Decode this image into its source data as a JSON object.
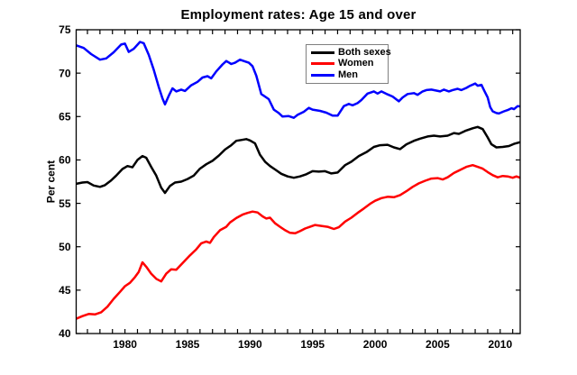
{
  "chart_data": {
    "type": "line",
    "title": "Employment rates: Age 15 and over",
    "xlabel": "",
    "ylabel": "Per cent",
    "xlim": [
      1976.1,
      2011.6
    ],
    "ylim": [
      40,
      75
    ],
    "y_ticks": [
      40,
      45,
      50,
      55,
      60,
      65,
      70,
      75
    ],
    "x_major_ticks": [
      1980,
      1985,
      1990,
      1995,
      2000,
      2005,
      2010
    ],
    "x_tick_labels": [
      "1980",
      "1985",
      "1990",
      "1995",
      "2000",
      "2005",
      "2010"
    ],
    "x_minor_tick_step": 1,
    "grid": false,
    "box": true,
    "legend_position": "upper-center",
    "axis_color": "#000000",
    "background_color": "#ffffff",
    "series": [
      {
        "name": "Both sexes",
        "color": "#000000",
        "points": [
          [
            1976.1,
            57.25
          ],
          [
            1976.6,
            57.4
          ],
          [
            1977.0,
            57.45
          ],
          [
            1977.5,
            57.05
          ],
          [
            1978.0,
            56.9
          ],
          [
            1978.4,
            57.1
          ],
          [
            1978.9,
            57.65
          ],
          [
            1979.3,
            58.2
          ],
          [
            1979.8,
            58.95
          ],
          [
            1980.2,
            59.3
          ],
          [
            1980.6,
            59.15
          ],
          [
            1981.0,
            60.0
          ],
          [
            1981.4,
            60.45
          ],
          [
            1981.7,
            60.25
          ],
          [
            1982.1,
            59.2
          ],
          [
            1982.5,
            58.2
          ],
          [
            1982.9,
            56.8
          ],
          [
            1983.2,
            56.2
          ],
          [
            1983.6,
            57.0
          ],
          [
            1984.0,
            57.4
          ],
          [
            1984.5,
            57.5
          ],
          [
            1985.0,
            57.8
          ],
          [
            1985.5,
            58.2
          ],
          [
            1986.0,
            59.0
          ],
          [
            1986.5,
            59.5
          ],
          [
            1987.0,
            59.9
          ],
          [
            1987.5,
            60.5
          ],
          [
            1988.0,
            61.2
          ],
          [
            1988.5,
            61.7
          ],
          [
            1988.9,
            62.2
          ],
          [
            1989.3,
            62.3
          ],
          [
            1989.7,
            62.4
          ],
          [
            1990.0,
            62.25
          ],
          [
            1990.4,
            61.9
          ],
          [
            1990.8,
            60.6
          ],
          [
            1991.2,
            59.8
          ],
          [
            1991.6,
            59.3
          ],
          [
            1992.0,
            58.9
          ],
          [
            1992.5,
            58.4
          ],
          [
            1993.0,
            58.1
          ],
          [
            1993.5,
            57.95
          ],
          [
            1994.0,
            58.1
          ],
          [
            1994.5,
            58.35
          ],
          [
            1995.0,
            58.7
          ],
          [
            1995.5,
            58.65
          ],
          [
            1996.0,
            58.7
          ],
          [
            1996.5,
            58.45
          ],
          [
            1997.0,
            58.55
          ],
          [
            1997.6,
            59.4
          ],
          [
            1998.1,
            59.8
          ],
          [
            1998.7,
            60.45
          ],
          [
            1999.3,
            60.9
          ],
          [
            1999.9,
            61.5
          ],
          [
            2000.4,
            61.7
          ],
          [
            2001.0,
            61.75
          ],
          [
            2001.5,
            61.45
          ],
          [
            2002.0,
            61.25
          ],
          [
            2002.5,
            61.8
          ],
          [
            2003.1,
            62.2
          ],
          [
            2003.6,
            62.45
          ],
          [
            2004.2,
            62.7
          ],
          [
            2004.7,
            62.8
          ],
          [
            2005.2,
            62.7
          ],
          [
            2005.8,
            62.8
          ],
          [
            2006.3,
            63.1
          ],
          [
            2006.7,
            63.0
          ],
          [
            2007.2,
            63.35
          ],
          [
            2007.8,
            63.65
          ],
          [
            2008.2,
            63.8
          ],
          [
            2008.6,
            63.55
          ],
          [
            2009.0,
            62.6
          ],
          [
            2009.3,
            61.8
          ],
          [
            2009.7,
            61.45
          ],
          [
            2010.2,
            61.5
          ],
          [
            2010.7,
            61.6
          ],
          [
            2011.1,
            61.85
          ],
          [
            2011.6,
            62.05
          ]
        ]
      },
      {
        "name": "Women",
        "color": "#ff0000",
        "points": [
          [
            1976.1,
            41.7
          ],
          [
            1976.6,
            42.0
          ],
          [
            1977.1,
            42.25
          ],
          [
            1977.6,
            42.2
          ],
          [
            1978.1,
            42.45
          ],
          [
            1978.6,
            43.1
          ],
          [
            1979.1,
            44.0
          ],
          [
            1979.6,
            44.8
          ],
          [
            1980.0,
            45.45
          ],
          [
            1980.4,
            45.85
          ],
          [
            1980.8,
            46.5
          ],
          [
            1981.1,
            47.1
          ],
          [
            1981.4,
            48.2
          ],
          [
            1981.7,
            47.7
          ],
          [
            1982.1,
            46.9
          ],
          [
            1982.5,
            46.3
          ],
          [
            1982.9,
            46.0
          ],
          [
            1983.3,
            46.9
          ],
          [
            1983.7,
            47.4
          ],
          [
            1984.1,
            47.35
          ],
          [
            1984.6,
            48.1
          ],
          [
            1985.2,
            49.0
          ],
          [
            1985.7,
            49.7
          ],
          [
            1986.1,
            50.4
          ],
          [
            1986.5,
            50.6
          ],
          [
            1986.8,
            50.45
          ],
          [
            1987.1,
            51.1
          ],
          [
            1987.6,
            51.9
          ],
          [
            1988.1,
            52.3
          ],
          [
            1988.4,
            52.8
          ],
          [
            1988.9,
            53.3
          ],
          [
            1989.4,
            53.7
          ],
          [
            1989.8,
            53.9
          ],
          [
            1990.2,
            54.05
          ],
          [
            1990.6,
            53.95
          ],
          [
            1991.0,
            53.5
          ],
          [
            1991.3,
            53.25
          ],
          [
            1991.6,
            53.35
          ],
          [
            1992.0,
            52.7
          ],
          [
            1992.4,
            52.3
          ],
          [
            1992.8,
            51.9
          ],
          [
            1993.2,
            51.6
          ],
          [
            1993.6,
            51.55
          ],
          [
            1994.0,
            51.8
          ],
          [
            1994.4,
            52.1
          ],
          [
            1994.8,
            52.3
          ],
          [
            1995.2,
            52.5
          ],
          [
            1995.7,
            52.4
          ],
          [
            1996.2,
            52.3
          ],
          [
            1996.7,
            52.05
          ],
          [
            1997.1,
            52.25
          ],
          [
            1997.6,
            52.9
          ],
          [
            1998.1,
            53.35
          ],
          [
            1998.6,
            53.9
          ],
          [
            1999.1,
            54.4
          ],
          [
            1999.6,
            54.95
          ],
          [
            2000.0,
            55.3
          ],
          [
            2000.5,
            55.6
          ],
          [
            2001.0,
            55.75
          ],
          [
            2001.5,
            55.7
          ],
          [
            2002.0,
            55.95
          ],
          [
            2002.5,
            56.4
          ],
          [
            2003.0,
            56.9
          ],
          [
            2003.5,
            57.3
          ],
          [
            2004.0,
            57.6
          ],
          [
            2004.5,
            57.85
          ],
          [
            2005.0,
            57.9
          ],
          [
            2005.4,
            57.75
          ],
          [
            2005.8,
            58.0
          ],
          [
            2006.3,
            58.5
          ],
          [
            2006.8,
            58.85
          ],
          [
            2007.3,
            59.2
          ],
          [
            2007.8,
            59.4
          ],
          [
            2008.2,
            59.2
          ],
          [
            2008.6,
            59.0
          ],
          [
            2009.0,
            58.6
          ],
          [
            2009.4,
            58.25
          ],
          [
            2009.8,
            58.0
          ],
          [
            2010.2,
            58.15
          ],
          [
            2010.6,
            58.1
          ],
          [
            2011.0,
            57.95
          ],
          [
            2011.3,
            58.1
          ],
          [
            2011.6,
            57.95
          ]
        ]
      },
      {
        "name": "Men",
        "color": "#0000ff",
        "points": [
          [
            1976.1,
            73.2
          ],
          [
            1976.7,
            72.9
          ],
          [
            1977.3,
            72.2
          ],
          [
            1978.0,
            71.55
          ],
          [
            1978.5,
            71.7
          ],
          [
            1979.1,
            72.4
          ],
          [
            1979.7,
            73.3
          ],
          [
            1980.0,
            73.4
          ],
          [
            1980.3,
            72.45
          ],
          [
            1980.7,
            72.8
          ],
          [
            1981.2,
            73.6
          ],
          [
            1981.5,
            73.45
          ],
          [
            1981.9,
            72.1
          ],
          [
            1982.3,
            70.4
          ],
          [
            1982.7,
            68.4
          ],
          [
            1983.0,
            67.1
          ],
          [
            1983.2,
            66.4
          ],
          [
            1983.5,
            67.4
          ],
          [
            1983.8,
            68.25
          ],
          [
            1984.1,
            67.9
          ],
          [
            1984.5,
            68.1
          ],
          [
            1984.8,
            67.95
          ],
          [
            1985.3,
            68.6
          ],
          [
            1985.8,
            69.0
          ],
          [
            1986.2,
            69.5
          ],
          [
            1986.6,
            69.65
          ],
          [
            1986.9,
            69.4
          ],
          [
            1987.3,
            70.2
          ],
          [
            1987.8,
            71.0
          ],
          [
            1988.1,
            71.4
          ],
          [
            1988.5,
            71.05
          ],
          [
            1988.8,
            71.2
          ],
          [
            1989.2,
            71.55
          ],
          [
            1989.5,
            71.4
          ],
          [
            1989.9,
            71.2
          ],
          [
            1990.2,
            70.8
          ],
          [
            1990.5,
            69.7
          ],
          [
            1990.9,
            67.6
          ],
          [
            1991.3,
            67.2
          ],
          [
            1991.5,
            67.0
          ],
          [
            1991.9,
            65.8
          ],
          [
            1992.3,
            65.4
          ],
          [
            1992.6,
            65.0
          ],
          [
            1993.1,
            65.05
          ],
          [
            1993.5,
            64.85
          ],
          [
            1993.8,
            65.2
          ],
          [
            1994.3,
            65.55
          ],
          [
            1994.7,
            66.0
          ],
          [
            1995.0,
            65.8
          ],
          [
            1995.6,
            65.65
          ],
          [
            1996.1,
            65.45
          ],
          [
            1996.6,
            65.1
          ],
          [
            1997.0,
            65.1
          ],
          [
            1997.5,
            66.2
          ],
          [
            1997.9,
            66.45
          ],
          [
            1998.2,
            66.3
          ],
          [
            1998.6,
            66.55
          ],
          [
            1998.9,
            66.9
          ],
          [
            1999.4,
            67.65
          ],
          [
            1999.9,
            67.9
          ],
          [
            2000.2,
            67.65
          ],
          [
            2000.5,
            67.9
          ],
          [
            2001.0,
            67.55
          ],
          [
            2001.4,
            67.3
          ],
          [
            2001.9,
            66.75
          ],
          [
            2002.2,
            67.2
          ],
          [
            2002.6,
            67.6
          ],
          [
            2003.1,
            67.7
          ],
          [
            2003.4,
            67.5
          ],
          [
            2003.8,
            67.9
          ],
          [
            2004.1,
            68.05
          ],
          [
            2004.5,
            68.1
          ],
          [
            2005.2,
            67.9
          ],
          [
            2005.5,
            68.1
          ],
          [
            2005.9,
            67.9
          ],
          [
            2006.2,
            68.05
          ],
          [
            2006.6,
            68.2
          ],
          [
            2006.9,
            68.05
          ],
          [
            2007.3,
            68.3
          ],
          [
            2007.6,
            68.55
          ],
          [
            2008.0,
            68.8
          ],
          [
            2008.2,
            68.55
          ],
          [
            2008.5,
            68.65
          ],
          [
            2008.7,
            68.05
          ],
          [
            2009.0,
            67.2
          ],
          [
            2009.2,
            66.1
          ],
          [
            2009.4,
            65.6
          ],
          [
            2009.7,
            65.4
          ],
          [
            2009.9,
            65.35
          ],
          [
            2010.3,
            65.6
          ],
          [
            2010.6,
            65.75
          ],
          [
            2010.9,
            65.95
          ],
          [
            2011.1,
            65.85
          ],
          [
            2011.4,
            66.2
          ],
          [
            2011.6,
            66.15
          ]
        ]
      }
    ]
  }
}
